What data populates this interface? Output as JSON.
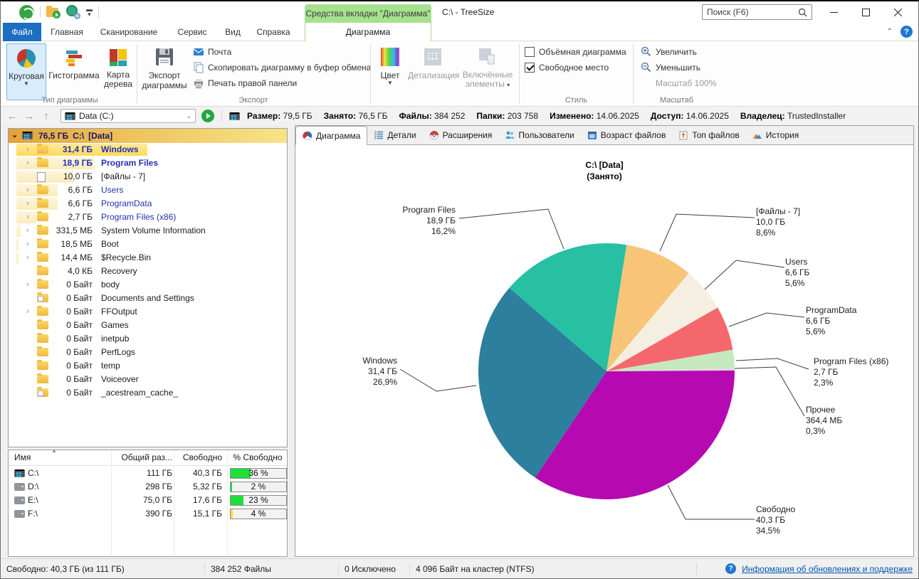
{
  "titlebar": {
    "context_cap": "Средства вкладки \"Диаграмма\"",
    "title": "C:\\ - TreeSize",
    "search_placeholder": "Поиск (F6)"
  },
  "menu_tabs": [
    "Файл",
    "Главная",
    "Сканирование",
    "Сервис",
    "Вид",
    "Справка"
  ],
  "context_tab": "Диаграмма",
  "ribbon": {
    "group1": {
      "label": "Тип диаграммы",
      "items": [
        "Круговая",
        "Гистограмма",
        "Карта дерева"
      ]
    },
    "group2": {
      "label": "Экспорт",
      "big": "Экспорт диаграммы",
      "items": [
        "Почта",
        "Скопировать диаграмму в буфер обмена",
        "Печать правой панели"
      ]
    },
    "group3": {
      "items": [
        "Цвет",
        "Детализация",
        "Включённые элементы"
      ]
    },
    "group4": {
      "label": "Стиль",
      "checkboxes": [
        {
          "label": "Объёмная диаграмма",
          "checked": false
        },
        {
          "label": "Свободное место",
          "checked": true
        }
      ]
    },
    "group5": {
      "label": "Масштаб",
      "items": [
        "Увеличить",
        "Уменьшить",
        "Масштаб 100%"
      ]
    }
  },
  "addressbar": {
    "path": "Data (C:)",
    "stats": [
      {
        "label": "Размер:",
        "value": "79,5 ГБ"
      },
      {
        "label": "Занято:",
        "value": "76,5 ГБ"
      },
      {
        "label": "Файлы:",
        "value": "384 252"
      },
      {
        "label": "Папки:",
        "value": "203 758"
      },
      {
        "label": "Изменено:",
        "value": "14.06.2025"
      },
      {
        "label": "Доступ:",
        "value": "14.06.2025"
      },
      {
        "label": "Владелец:",
        "value": "TrustedInstaller"
      }
    ]
  },
  "tree": {
    "root": {
      "size": "76,5 ГБ",
      "name": "C:\\",
      "tag": "[Data]"
    },
    "rows": [
      {
        "size": "31,4 ГБ",
        "name": "Windows",
        "bold": true,
        "navy": true,
        "icon": "folder",
        "chev": true,
        "band": 184,
        "hot": true
      },
      {
        "size": "18,9 ГБ",
        "name": "Program Files",
        "bold": true,
        "navy": true,
        "icon": "folder",
        "chev": true,
        "band": 110
      },
      {
        "size": "10,0 ГБ",
        "name": "[Файлы - 7]",
        "icon": "file",
        "chev": false,
        "band": 80
      },
      {
        "size": "6,6 ГБ",
        "name": "Users",
        "navy": true,
        "icon": "folder",
        "chev": true,
        "band": 58
      },
      {
        "size": "6,6 ГБ",
        "name": "ProgramData",
        "navy": true,
        "icon": "folder",
        "chev": true,
        "band": 58
      },
      {
        "size": "2,7 ГБ",
        "name": "Program Files (x86)",
        "navy": true,
        "icon": "folder",
        "chev": true,
        "band": 28
      },
      {
        "size": "331,5 МБ",
        "name": "System Volume Information",
        "icon": "folder",
        "chev": true,
        "band": 6
      },
      {
        "size": "18,5 МБ",
        "name": "Boot",
        "icon": "folder",
        "chev": true,
        "band": 3
      },
      {
        "size": "14,4 МБ",
        "name": "$Recycle.Bin",
        "icon": "folder",
        "chev": true,
        "band": 3
      },
      {
        "size": "4,0 КБ",
        "name": "Recovery",
        "icon": "folder",
        "chev": false,
        "band": 0
      },
      {
        "size": "0 Байт",
        "name": "body",
        "icon": "folder",
        "chev": true,
        "band": 0
      },
      {
        "size": "0 Байт",
        "name": "Documents and Settings",
        "icon": "folder-link",
        "chev": false,
        "band": 0
      },
      {
        "size": "0 Байт",
        "name": "FFOutput",
        "icon": "folder",
        "chev": true,
        "band": 0
      },
      {
        "size": "0 Байт",
        "name": "Games",
        "icon": "folder",
        "chev": false,
        "band": 0
      },
      {
        "size": "0 Байт",
        "name": "inetpub",
        "icon": "folder",
        "chev": false,
        "band": 0
      },
      {
        "size": "0 Байт",
        "name": "PerfLogs",
        "icon": "folder",
        "chev": false,
        "band": 0
      },
      {
        "size": "0 Байт",
        "name": "temp",
        "icon": "folder",
        "chev": false,
        "band": 0
      },
      {
        "size": "0 Байт",
        "name": "Voiceover",
        "icon": "folder",
        "chev": false,
        "band": 0
      },
      {
        "size": "0 Байт",
        "name": "_acestream_cache_",
        "icon": "folder-link",
        "chev": false,
        "band": 0
      }
    ]
  },
  "drives": {
    "headers": [
      "Имя",
      "Общий раз...",
      "Свободно",
      "% Свободно"
    ],
    "rows": [
      {
        "name": "C:\\",
        "icon": "win",
        "total": "111 ГБ",
        "free": "40,3 ГБ",
        "pct": 36,
        "pct_label": "36 %",
        "bar_color": "#1fde3a"
      },
      {
        "name": "D:\\",
        "icon": "plain",
        "total": "298 ГБ",
        "free": "5,32 ГБ",
        "pct": 2,
        "pct_label": "2 %",
        "bar_color": "#1fde3a"
      },
      {
        "name": "E:\\",
        "icon": "plain",
        "total": "75,0 ГБ",
        "free": "17,6 ГБ",
        "pct": 23,
        "pct_label": "23 %",
        "bar_color": "#1fde3a"
      },
      {
        "name": "F:\\",
        "icon": "plain",
        "total": "390 ГБ",
        "free": "15,1 ГБ",
        "pct": 4,
        "pct_label": "4 %",
        "bar_color": "#efe32e"
      }
    ]
  },
  "panel_tabs": [
    "Диаграмма",
    "Детали",
    "Расширения",
    "Пользователи",
    "Возраст файлов",
    "Топ файлов",
    "История"
  ],
  "chart_data": {
    "type": "pie",
    "title": "C:\\   [Data]",
    "subtitle": "(Занято)",
    "start_angle_deg": 9,
    "slices": [
      {
        "label": "[Файлы - 7]",
        "size": "10,0 ГБ",
        "pct": 8.6,
        "pct_label": "8,6%",
        "color": "#f8c478"
      },
      {
        "label": "Users",
        "size": "6,6 ГБ",
        "pct": 5.6,
        "pct_label": "5,6%",
        "color": "#f5efe1"
      },
      {
        "label": "ProgramData",
        "size": "6,6 ГБ",
        "pct": 5.6,
        "pct_label": "5,6%",
        "color": "#f4686d"
      },
      {
        "label": "Program Files (x86)",
        "size": "2,7 ГБ",
        "pct": 2.3,
        "pct_label": "2,3%",
        "color": "#c6e8bf"
      },
      {
        "label": "Прочее",
        "size": "364,4 МБ",
        "pct": 0.3,
        "pct_label": "0,3%",
        "color": "#dcdcdc"
      },
      {
        "label": "Свободно",
        "size": "40,3 ГБ",
        "pct": 34.5,
        "pct_label": "34,5%",
        "color": "#b609b2"
      },
      {
        "label": "Windows",
        "size": "31,4 ГБ",
        "pct": 26.9,
        "pct_label": "26,9%",
        "color": "#2c7f9d"
      },
      {
        "label": "Program Files",
        "size": "18,9 ГБ",
        "pct": 16.2,
        "pct_label": "16,2%",
        "color": "#27c0a3"
      }
    ]
  },
  "statusbar": {
    "items": [
      "Свободно: 40,3 ГБ  (из 111 ГБ)",
      "384 252 Файлы",
      "0 Исключено",
      "4 096 Байт на кластер (NTFS)"
    ],
    "link": "Информация об обновлениях и поддержке"
  }
}
